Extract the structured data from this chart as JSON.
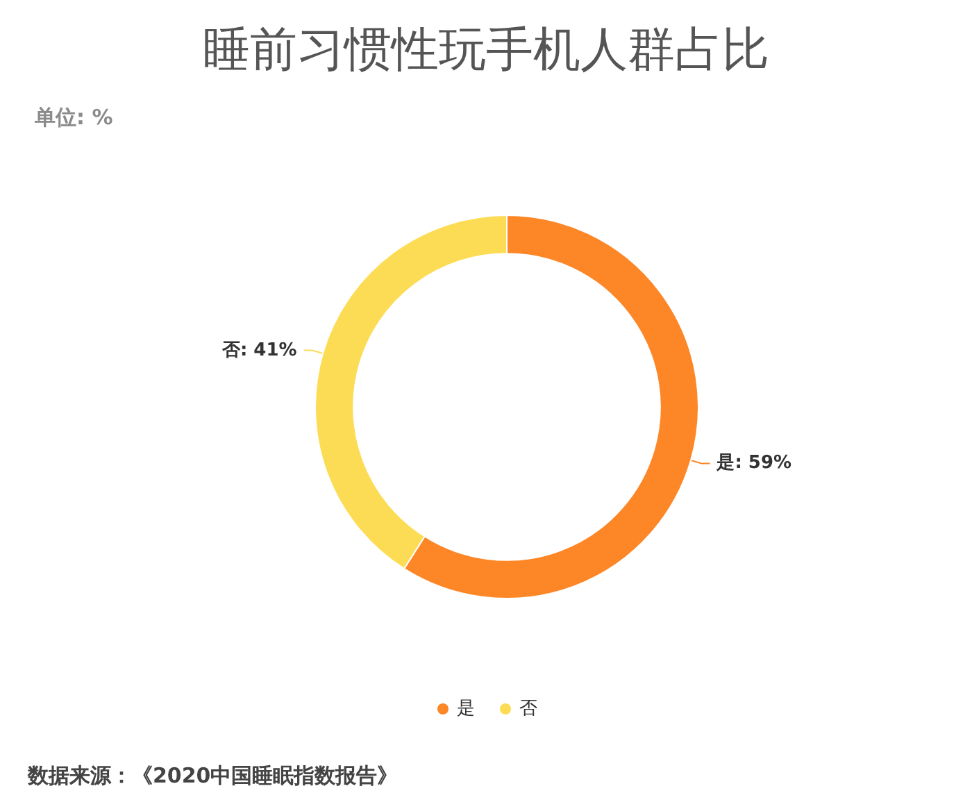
{
  "chart_data": {
    "type": "donut",
    "title": "睡前习惯性玩手机人群占比",
    "subtitle": "单位: %",
    "categories": [
      "是",
      "否"
    ],
    "values": [
      59,
      41
    ],
    "colors": [
      "#fd8627",
      "#fddc55"
    ],
    "value_labels": [
      "是: 59%",
      "否: 41%"
    ],
    "legend": "bottom",
    "annotations": [
      "数据来源：《2020中国睡眠指数报告》"
    ]
  }
}
